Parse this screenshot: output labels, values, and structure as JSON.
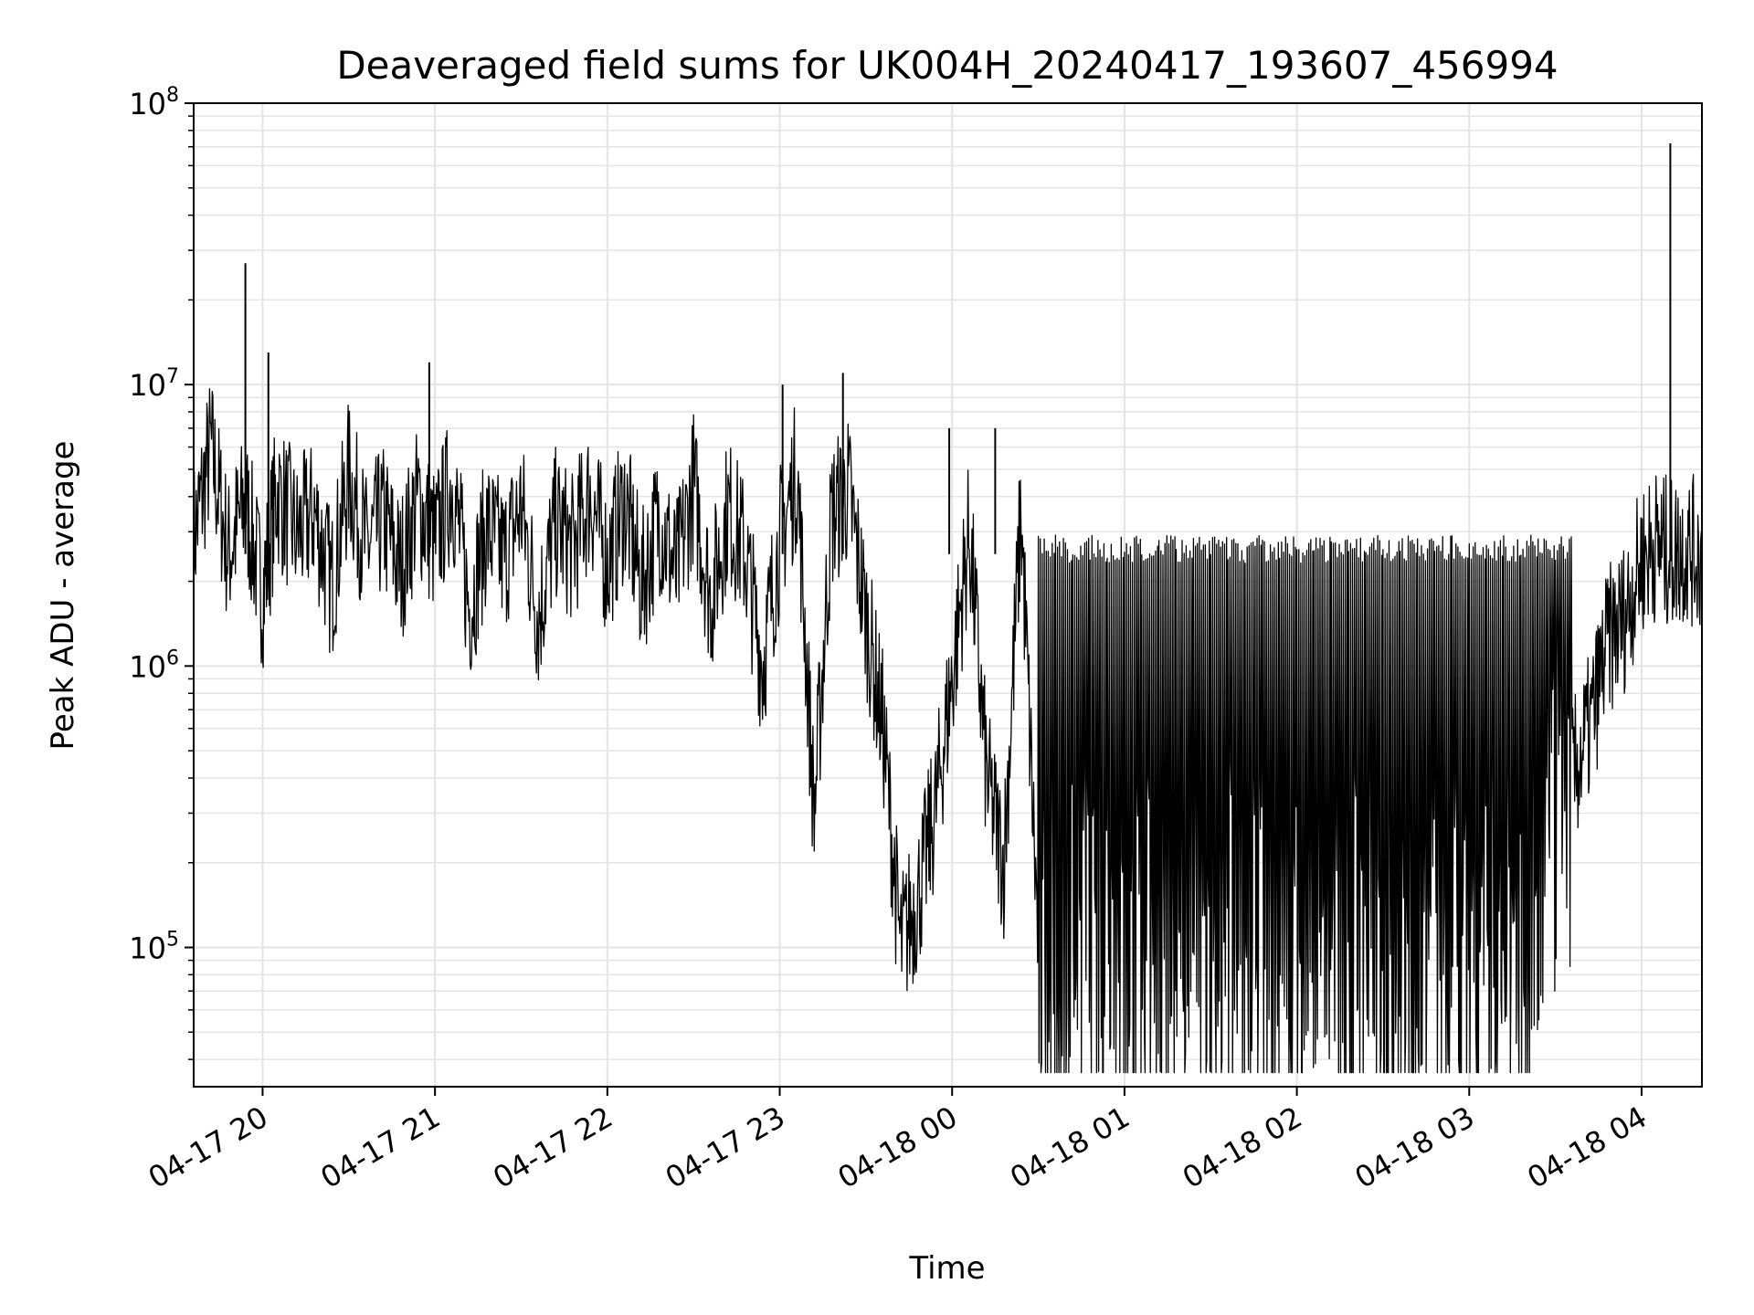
{
  "colors": {
    "line": "#000000",
    "grid": "#e4e4e4",
    "axes": "#000000",
    "background": "#ffffff"
  },
  "chart_data": {
    "type": "line",
    "title": "Deaveraged field sums for UK004H_20240417_193607_456994",
    "xlabel": "Time",
    "ylabel": "Peak ADU - average",
    "yscale": "log",
    "ylim": [
      32000,
      100000000
    ],
    "xlim": [
      "2024-04-17 19:36",
      "2024-04-18 04:21"
    ],
    "grid": true,
    "x_ticks": [
      "2024-04-17 20:00",
      "2024-04-17 21:00",
      "2024-04-17 22:00",
      "2024-04-17 23:00",
      "2024-04-18 00:00",
      "2024-04-18 01:00",
      "2024-04-18 02:00",
      "2024-04-18 03:00",
      "2024-04-18 04:00"
    ],
    "x_tick_labels": [
      "04-17 20",
      "04-17 21",
      "04-17 22",
      "04-17 23",
      "04-18 00",
      "04-18 01",
      "04-18 02",
      "04-18 03",
      "04-18 04"
    ],
    "y_ticks": [
      100000,
      1000000,
      10000000,
      100000000
    ],
    "y_tick_labels": [
      {
        "base": "10",
        "exp": "5"
      },
      {
        "base": "10",
        "exp": "6"
      },
      {
        "base": "10",
        "exp": "7"
      },
      {
        "base": "10",
        "exp": "8"
      }
    ],
    "series": [
      {
        "x": [
          "2024-04-17 19:36",
          "2024-04-17 19:42",
          "2024-04-17 19:48",
          "2024-04-17 19:54",
          "2024-04-17 20:00",
          "2024-04-17 20:05",
          "2024-04-17 20:12",
          "2024-04-17 20:18",
          "2024-04-17 20:24",
          "2024-04-17 20:30",
          "2024-04-17 20:36",
          "2024-04-17 20:42",
          "2024-04-17 20:48",
          "2024-04-17 20:54",
          "2024-04-17 21:00",
          "2024-04-17 21:06",
          "2024-04-17 21:12",
          "2024-04-17 21:18",
          "2024-04-17 21:24",
          "2024-04-17 21:30",
          "2024-04-17 21:36",
          "2024-04-17 21:42",
          "2024-04-17 21:48",
          "2024-04-17 21:54",
          "2024-04-17 22:00",
          "2024-04-17 22:06",
          "2024-04-17 22:12",
          "2024-04-17 22:18",
          "2024-04-17 22:24",
          "2024-04-17 22:30",
          "2024-04-17 22:36",
          "2024-04-17 22:42",
          "2024-04-17 22:48",
          "2024-04-17 22:54",
          "2024-04-17 23:00",
          "2024-04-17 23:06",
          "2024-04-17 23:12",
          "2024-04-17 23:18",
          "2024-04-17 23:24",
          "2024-04-17 23:30",
          "2024-04-17 23:36",
          "2024-04-17 23:42",
          "2024-04-17 23:48",
          "2024-04-17 23:54",
          "2024-04-18 00:00",
          "2024-04-18 00:06",
          "2024-04-18 00:12",
          "2024-04-18 00:18",
          "2024-04-18 00:24",
          "2024-04-18 00:30",
          "2024-04-18 00:36",
          "2024-04-18 00:42",
          "2024-04-18 00:48",
          "2024-04-18 00:54",
          "2024-04-18 01:00",
          "2024-04-18 01:06",
          "2024-04-18 01:12",
          "2024-04-18 01:18",
          "2024-04-18 01:24",
          "2024-04-18 01:30",
          "2024-04-18 01:36",
          "2024-04-18 01:42",
          "2024-04-18 01:48",
          "2024-04-18 01:54",
          "2024-04-18 02:00",
          "2024-04-18 02:06",
          "2024-04-18 02:12",
          "2024-04-18 02:18",
          "2024-04-18 02:24",
          "2024-04-18 02:30",
          "2024-04-18 02:36",
          "2024-04-18 02:42",
          "2024-04-18 02:48",
          "2024-04-18 02:54",
          "2024-04-18 03:00",
          "2024-04-18 03:06",
          "2024-04-18 03:12",
          "2024-04-18 03:18",
          "2024-04-18 03:24",
          "2024-04-18 03:30",
          "2024-04-18 03:36",
          "2024-04-18 03:42",
          "2024-04-18 03:48",
          "2024-04-18 03:54",
          "2024-04-18 04:00",
          "2024-04-18 04:05",
          "2024-04-18 04:10",
          "2024-04-18 04:15",
          "2024-04-18 04:21"
        ],
        "values": [
          2800000,
          6000000,
          2500000,
          3800000,
          1800000,
          4200000,
          2900000,
          3500000,
          1900000,
          4800000,
          2600000,
          3300000,
          2200000,
          3900000,
          2700000,
          4500000,
          1600000,
          3100000,
          2400000,
          3700000,
          1500000,
          3200000,
          2600000,
          4100000,
          2300000,
          3800000,
          1900000,
          3400000,
          2100000,
          4400000,
          1700000,
          3600000,
          2500000,
          1000000,
          2800000,
          4900000,
          300000,
          3400000,
          4200000,
          1500000,
          600000,
          100000,
          150000,
          300000,
          900000,
          3000000,
          400000,
          200000,
          3500000,
          100000,
          80000,
          110000,
          95000,
          105000,
          90000,
          100000,
          85000,
          110000,
          95000,
          88000,
          105000,
          92000,
          100000,
          90000,
          95000,
          105000,
          88000,
          100000,
          92000,
          110000,
          90000,
          98000,
          105000,
          95000,
          88000,
          100000,
          110000,
          95000,
          150000,
          300000,
          400000,
          600000,
          1200000,
          1500000,
          2400000,
          2700000,
          2500000,
          2600000,
          2500000
        ],
        "spikes": [
          {
            "x": "2024-04-17 19:54",
            "y": 27000000
          },
          {
            "x": "2024-04-17 20:02",
            "y": 13000000
          },
          {
            "x": "2024-04-17 20:58",
            "y": 12000000
          },
          {
            "x": "2024-04-17 23:01",
            "y": 10000000
          },
          {
            "x": "2024-04-17 23:22",
            "y": 11000000
          },
          {
            "x": "2024-04-17 23:59",
            "y": 7000000
          },
          {
            "x": "2024-04-18 00:15",
            "y": 7000000
          },
          {
            "x": "2024-04-18 04:10",
            "y": 72000000
          }
        ]
      }
    ]
  }
}
